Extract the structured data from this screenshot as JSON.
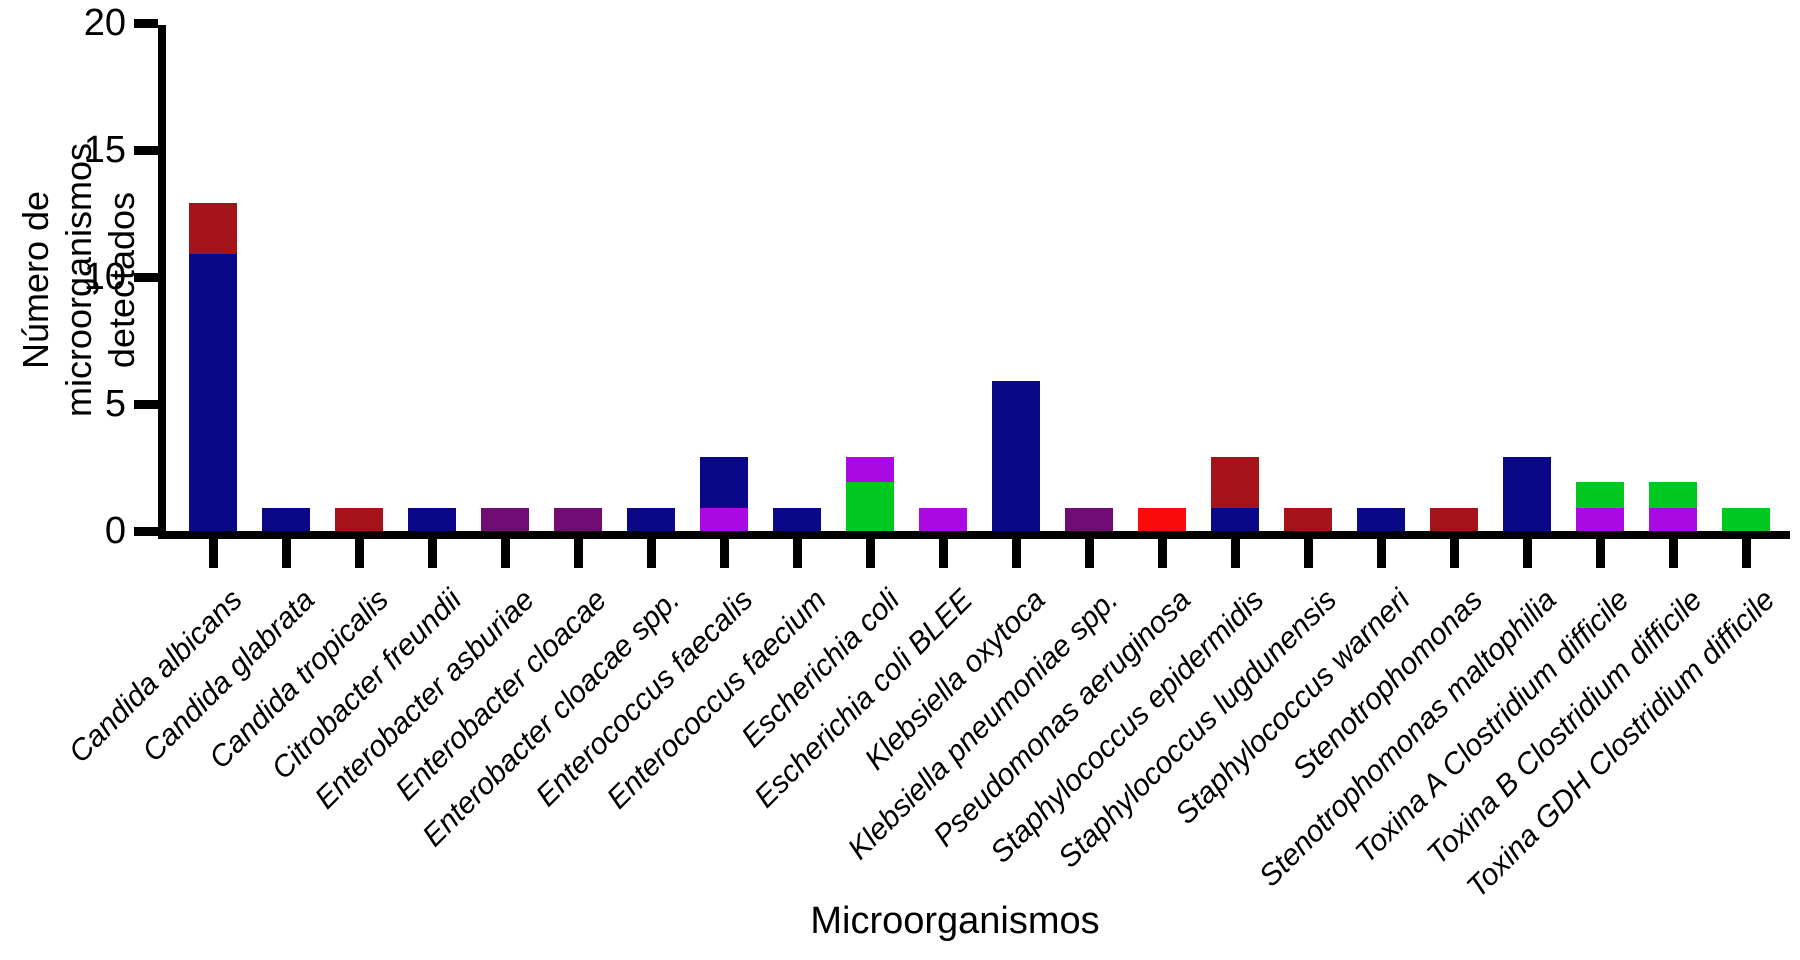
{
  "chart_data": {
    "type": "bar",
    "stacked": true,
    "title": "",
    "xlabel": "Microorganismos",
    "ylabel": "Número de microorganismos detectados",
    "ylabel_lines": [
      "Número de microorganismos",
      "detectados"
    ],
    "ylim": [
      0,
      20
    ],
    "yticks": [
      0,
      5,
      10,
      15,
      20
    ],
    "grid": false,
    "legend_position": "none",
    "tick_label_style": "italic, rotated 45°",
    "palette": {
      "navy": "#0A0889",
      "dark_red": "#A51219",
      "dark_purple": "#700C73",
      "violet": "#AB09E4",
      "green": "#00C81E",
      "red": "#FA0A0A"
    },
    "categories": [
      "Candida albicans",
      "Candida glabrata",
      "Candida tropicalis",
      "Citrobacter freundii",
      "Enterobacter asburiae",
      "Enterobacter cloacae",
      "Enterobacter cloacae spp.",
      "Enterococcus faecalis",
      "Enterococcus faecium",
      "Escherichia coli",
      "Escherichia coli BLEE",
      "Klebsiella oxytoca",
      "Klebsiella pneumoniae spp.",
      "Pseudomonas aeruginosa",
      "Staphylococcus epidermidis",
      "Staphylococcus lugdunensis",
      "Staphylococcus warneri",
      "Stenotrophomonas",
      "Stenotrophomonas maltophilia",
      "Toxina A Clostridium difficile",
      "Toxina B Clostridium difficile",
      "Toxina GDH Clostridium difficile"
    ],
    "bars": [
      {
        "category": "Candida albicans",
        "total": 13,
        "segments": [
          {
            "color_key": "navy",
            "value": 11
          },
          {
            "color_key": "dark_red",
            "value": 2
          }
        ]
      },
      {
        "category": "Candida glabrata",
        "total": 1,
        "segments": [
          {
            "color_key": "navy",
            "value": 1
          }
        ]
      },
      {
        "category": "Candida tropicalis",
        "total": 1,
        "segments": [
          {
            "color_key": "dark_red",
            "value": 1
          }
        ]
      },
      {
        "category": "Citrobacter freundii",
        "total": 1,
        "segments": [
          {
            "color_key": "navy",
            "value": 1
          }
        ]
      },
      {
        "category": "Enterobacter asburiae",
        "total": 1,
        "segments": [
          {
            "color_key": "dark_purple",
            "value": 1
          }
        ]
      },
      {
        "category": "Enterobacter cloacae",
        "total": 1,
        "segments": [
          {
            "color_key": "dark_purple",
            "value": 1
          }
        ]
      },
      {
        "category": "Enterobacter cloacae spp.",
        "total": 1,
        "segments": [
          {
            "color_key": "navy",
            "value": 1
          }
        ]
      },
      {
        "category": "Enterococcus faecalis",
        "total": 3,
        "segments": [
          {
            "color_key": "violet",
            "value": 1
          },
          {
            "color_key": "navy",
            "value": 2
          }
        ]
      },
      {
        "category": "Enterococcus faecium",
        "total": 1,
        "segments": [
          {
            "color_key": "navy",
            "value": 1
          }
        ]
      },
      {
        "category": "Escherichia coli",
        "total": 3,
        "segments": [
          {
            "color_key": "green",
            "value": 2
          },
          {
            "color_key": "violet",
            "value": 1
          }
        ]
      },
      {
        "category": "Escherichia coli BLEE",
        "total": 1,
        "segments": [
          {
            "color_key": "violet",
            "value": 1
          }
        ]
      },
      {
        "category": "Klebsiella oxytoca",
        "total": 6,
        "segments": [
          {
            "color_key": "navy",
            "value": 6
          }
        ]
      },
      {
        "category": "Klebsiella pneumoniae spp.",
        "total": 1,
        "segments": [
          {
            "color_key": "dark_purple",
            "value": 1
          }
        ]
      },
      {
        "category": "Pseudomonas aeruginosa",
        "total": 1,
        "segments": [
          {
            "color_key": "red",
            "value": 1
          }
        ]
      },
      {
        "category": "Staphylococcus epidermidis",
        "total": 3,
        "segments": [
          {
            "color_key": "navy",
            "value": 1
          },
          {
            "color_key": "dark_red",
            "value": 2
          }
        ]
      },
      {
        "category": "Staphylococcus lugdunensis",
        "total": 1,
        "segments": [
          {
            "color_key": "dark_red",
            "value": 1
          }
        ]
      },
      {
        "category": "Staphylococcus warneri",
        "total": 1,
        "segments": [
          {
            "color_key": "navy",
            "value": 1
          }
        ]
      },
      {
        "category": "Stenotrophomonas",
        "total": 1,
        "segments": [
          {
            "color_key": "dark_red",
            "value": 1
          }
        ]
      },
      {
        "category": "Stenotrophomonas maltophilia",
        "total": 3,
        "segments": [
          {
            "color_key": "navy",
            "value": 3
          }
        ]
      },
      {
        "category": "Toxina A Clostridium difficile",
        "total": 2,
        "segments": [
          {
            "color_key": "violet",
            "value": 1
          },
          {
            "color_key": "green",
            "value": 1
          }
        ]
      },
      {
        "category": "Toxina B Clostridium difficile",
        "total": 2,
        "segments": [
          {
            "color_key": "violet",
            "value": 1
          },
          {
            "color_key": "green",
            "value": 1
          }
        ]
      },
      {
        "category": "Toxina GDH Clostridium difficile",
        "total": 1,
        "segments": [
          {
            "color_key": "green",
            "value": 1
          }
        ]
      }
    ]
  }
}
